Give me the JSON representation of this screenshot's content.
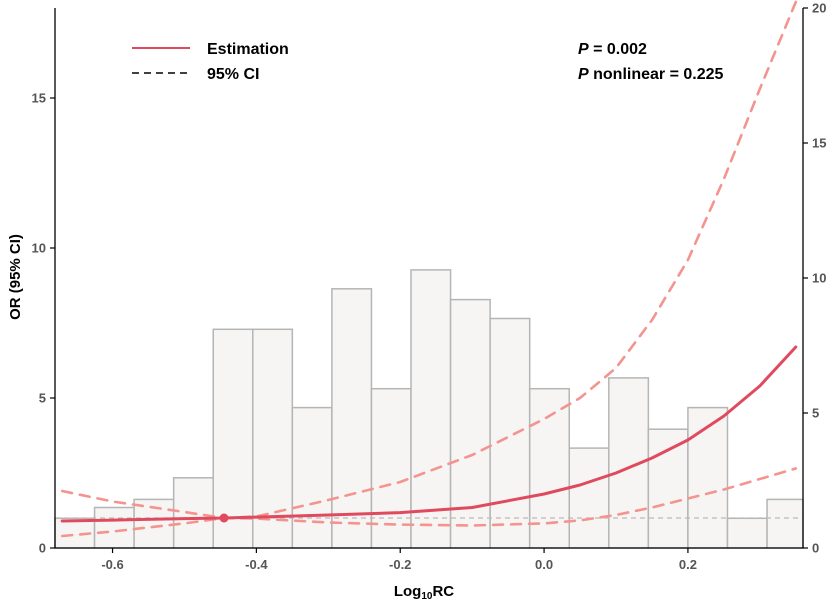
{
  "chart_data": {
    "type": "line",
    "xlabel_main": "Log",
    "xlabel_sub": "10",
    "xlabel_tail": "RC",
    "ylabel": "OR (95% CI)",
    "xlim": [
      -0.68,
      0.36
    ],
    "ylim_left": [
      0,
      18
    ],
    "ylim_right": [
      0,
      20
    ],
    "x_ticks": [
      -0.6,
      -0.4,
      -0.2,
      0.0,
      0.2
    ],
    "x_tick_labels": [
      "-0.6",
      "-0.4",
      "-0.2",
      "0.0",
      "0.2"
    ],
    "y_left_ticks": [
      0,
      5,
      10,
      15
    ],
    "y_left_tick_labels": [
      "0",
      "5",
      "10",
      "15"
    ],
    "y_right_ticks": [
      0,
      5,
      10,
      15,
      20
    ],
    "y_right_tick_labels": [
      "0",
      "5",
      "10",
      "15",
      "20"
    ],
    "reference_line": 1,
    "reference_point": {
      "x": -0.445,
      "y": 1.0
    },
    "histogram": {
      "bin_width": 0.055,
      "bins_start": [
        -0.68,
        -0.625,
        -0.57,
        -0.515,
        -0.46,
        -0.405,
        -0.35,
        -0.295,
        -0.24,
        -0.185,
        -0.13,
        -0.075,
        -0.02,
        0.035,
        0.09,
        0.145,
        0.2,
        0.255,
        0.31
      ],
      "heights": [
        1.1,
        1.5,
        1.8,
        2.6,
        8.1,
        8.1,
        5.2,
        9.6,
        5.9,
        10.3,
        9.2,
        8.5,
        5.9,
        3.7,
        6.3,
        4.4,
        5.2,
        1.1,
        1.8
      ]
    },
    "series": [
      {
        "name": "Estimation",
        "color": "#e04a5e",
        "style": "solid",
        "x": [
          -0.67,
          -0.6,
          -0.5,
          -0.445,
          -0.4,
          -0.3,
          -0.2,
          -0.1,
          0.0,
          0.05,
          0.1,
          0.15,
          0.2,
          0.25,
          0.3,
          0.35
        ],
        "y": [
          0.9,
          0.93,
          0.98,
          1.0,
          1.03,
          1.1,
          1.18,
          1.35,
          1.8,
          2.1,
          2.5,
          3.0,
          3.6,
          4.4,
          5.4,
          6.7
        ]
      },
      {
        "name": "95% CI",
        "color": "#f4948f",
        "style": "dashed",
        "x": [
          -0.67,
          -0.6,
          -0.5,
          -0.445,
          -0.4,
          -0.3,
          -0.2,
          -0.1,
          0.0,
          0.05,
          0.1,
          0.15,
          0.2,
          0.25,
          0.3,
          0.35
        ],
        "y": [
          1.9,
          1.55,
          1.2,
          1.0,
          1.05,
          1.6,
          2.2,
          3.1,
          4.3,
          5.0,
          6.0,
          7.6,
          9.6,
          12.3,
          15.3,
          18.2
        ]
      },
      {
        "name": "95% CI lower",
        "color": "#f4948f",
        "style": "dashed",
        "x": [
          -0.67,
          -0.6,
          -0.5,
          -0.445,
          -0.4,
          -0.3,
          -0.2,
          -0.1,
          0.0,
          0.05,
          0.1,
          0.15,
          0.2,
          0.25,
          0.3,
          0.35
        ],
        "y": [
          0.4,
          0.55,
          0.82,
          1.0,
          0.98,
          0.85,
          0.78,
          0.75,
          0.82,
          0.92,
          1.1,
          1.35,
          1.65,
          1.95,
          2.3,
          2.65
        ]
      }
    ],
    "legend": {
      "placement": "top-left",
      "entries": [
        {
          "label": "Estimation",
          "style": "solid",
          "color": "#e04a5e"
        },
        {
          "label": "95% CI",
          "style": "dashed",
          "color": "#000000"
        }
      ]
    },
    "annotations": [
      {
        "italic": "P",
        "text": " = 0.002"
      },
      {
        "italic": "P",
        "text": " nonlinear = 0.225"
      }
    ],
    "colors": {
      "histogram_fill": "#f6f5f4",
      "histogram_stroke": "#b5b5b5",
      "reference_line": "#bbbbbb",
      "axis": "#000000"
    }
  }
}
